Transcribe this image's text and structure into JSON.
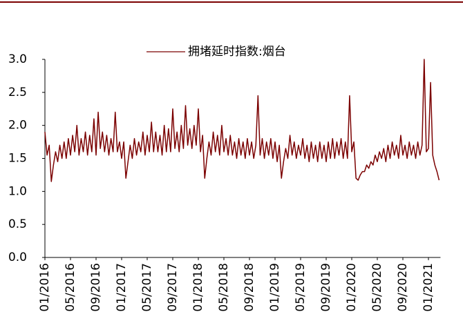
{
  "chart_data": {
    "type": "line",
    "categories": [
      "01/2016",
      null,
      null,
      null,
      null,
      null,
      null,
      null,
      null,
      null,
      null,
      null,
      "05/2016",
      null,
      null,
      null,
      null,
      null,
      null,
      null,
      null,
      null,
      null,
      null,
      "09/2016",
      null,
      null,
      null,
      null,
      null,
      null,
      null,
      null,
      null,
      null,
      null,
      "01/2017",
      null,
      null,
      null,
      null,
      null,
      null,
      null,
      null,
      null,
      null,
      null,
      "05/2017",
      null,
      null,
      null,
      null,
      null,
      null,
      null,
      null,
      null,
      null,
      null,
      "09/2017",
      null,
      null,
      null,
      null,
      null,
      null,
      null,
      null,
      null,
      null,
      null,
      "01/2018",
      null,
      null,
      null,
      null,
      null,
      null,
      null,
      null,
      null,
      null,
      null,
      "05/2018",
      null,
      null,
      null,
      null,
      null,
      null,
      null,
      null,
      null,
      null,
      null,
      "09/2018",
      null,
      null,
      null,
      null,
      null,
      null,
      null,
      null,
      null,
      null,
      null,
      "01/2019",
      null,
      null,
      null,
      null,
      null,
      null,
      null,
      null,
      null,
      null,
      null,
      "05/2019",
      null,
      null,
      null,
      null,
      null,
      null,
      null,
      null,
      null,
      null,
      null,
      "09/2019",
      null,
      null,
      null,
      null,
      null,
      null,
      null,
      null,
      null,
      null,
      null,
      "01/2020",
      null,
      null,
      null,
      null,
      null,
      null,
      null,
      null,
      null,
      null,
      null,
      "05/2020",
      null,
      null,
      null,
      null,
      null,
      null,
      null,
      null,
      null,
      null,
      null,
      "09/2020",
      null,
      null,
      null,
      null,
      null,
      null,
      null,
      null,
      null,
      null,
      null,
      "01/2021",
      null,
      null,
      null,
      null,
      null
    ],
    "series": [
      {
        "name": "拥堵延时指数:烟台",
        "color": "#7b0000",
        "values": [
          1.9,
          1.55,
          1.7,
          1.15,
          1.4,
          1.6,
          1.45,
          1.7,
          1.5,
          1.75,
          1.5,
          1.8,
          1.55,
          1.85,
          1.6,
          2.0,
          1.55,
          1.8,
          1.6,
          1.9,
          1.55,
          1.85,
          1.6,
          2.1,
          1.55,
          2.2,
          1.65,
          1.9,
          1.6,
          1.85,
          1.55,
          1.8,
          1.6,
          2.2,
          1.6,
          1.75,
          1.5,
          1.75,
          1.2,
          1.45,
          1.7,
          1.5,
          1.8,
          1.55,
          1.75,
          1.6,
          1.9,
          1.55,
          1.85,
          1.6,
          2.05,
          1.6,
          1.9,
          1.6,
          1.85,
          1.55,
          2.0,
          1.6,
          1.95,
          1.6,
          2.25,
          1.65,
          1.9,
          1.6,
          2.0,
          1.65,
          2.3,
          1.7,
          1.95,
          1.65,
          2.0,
          1.7,
          2.25,
          1.6,
          1.85,
          1.2,
          1.5,
          1.75,
          1.55,
          1.9,
          1.6,
          1.85,
          1.55,
          2.0,
          1.6,
          1.8,
          1.55,
          1.85,
          1.55,
          1.75,
          1.5,
          1.8,
          1.55,
          1.75,
          1.5,
          1.8,
          1.55,
          1.75,
          1.5,
          1.7,
          2.45,
          1.55,
          1.8,
          1.5,
          1.75,
          1.55,
          1.8,
          1.5,
          1.75,
          1.45,
          1.7,
          1.2,
          1.45,
          1.65,
          1.5,
          1.85,
          1.55,
          1.75,
          1.5,
          1.7,
          1.55,
          1.8,
          1.5,
          1.7,
          1.45,
          1.75,
          1.5,
          1.7,
          1.45,
          1.75,
          1.5,
          1.7,
          1.45,
          1.75,
          1.5,
          1.8,
          1.5,
          1.75,
          1.55,
          1.8,
          1.5,
          1.75,
          1.5,
          2.45,
          1.6,
          1.75,
          1.2,
          1.17,
          1.25,
          1.3,
          1.3,
          1.4,
          1.35,
          1.45,
          1.4,
          1.55,
          1.45,
          1.6,
          1.5,
          1.65,
          1.45,
          1.7,
          1.5,
          1.75,
          1.55,
          1.7,
          1.5,
          1.85,
          1.55,
          1.7,
          1.5,
          1.75,
          1.55,
          1.7,
          1.5,
          1.75,
          1.55,
          1.7,
          3.0,
          1.6,
          1.65,
          2.65,
          1.55,
          1.4,
          1.3,
          1.17
        ]
      }
    ],
    "ylim": [
      0,
      3
    ],
    "yticks": [
      {
        "value": 0,
        "label": "0.0"
      },
      {
        "value": 0.5,
        "label": "0.5"
      },
      {
        "value": 1,
        "label": "1.0"
      },
      {
        "value": 1.5,
        "label": "1.5"
      },
      {
        "value": 2,
        "label": "2.0"
      },
      {
        "value": 2.5,
        "label": "2.5"
      },
      {
        "value": 3,
        "label": "3.0"
      }
    ],
    "legend": "top"
  }
}
